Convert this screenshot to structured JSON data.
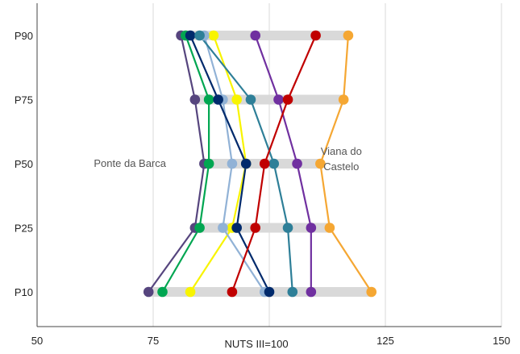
{
  "chart_data": {
    "type": "dot-range",
    "xlabel": "NUTS III=100",
    "xlim": [
      50,
      150
    ],
    "x_ticks": [
      50,
      75,
      125,
      150
    ],
    "x_tick_labels": [
      "50",
      "75",
      "125",
      "150"
    ],
    "gridlines_at": [
      75,
      100,
      125,
      150
    ],
    "categories": [
      "P90",
      "P75",
      "P50",
      "P25",
      "P10"
    ],
    "range_bars": [
      {
        "category": "P90",
        "min": 81,
        "max": 117
      },
      {
        "category": "P75",
        "min": 84,
        "max": 116
      },
      {
        "category": "P50",
        "min": 86,
        "max": 111
      },
      {
        "category": "P25",
        "min": 84,
        "max": 113
      },
      {
        "category": "P10",
        "min": 74,
        "max": 122
      }
    ],
    "annotations": [
      {
        "text": "Ponte da Barca",
        "x": 70,
        "category": "P50"
      },
      {
        "text": "Viana do",
        "x": 115.5,
        "category": "P50",
        "line": 0
      },
      {
        "text": "Castelo",
        "x": 115.5,
        "category": "P50",
        "line": 1
      }
    ],
    "series": [
      {
        "color": "#56457e",
        "values": [
          81,
          84,
          86,
          84,
          74
        ]
      },
      {
        "color": "#00a651",
        "values": [
          82,
          87,
          87,
          85,
          77
        ]
      },
      {
        "color": "#f8f400",
        "values": [
          88,
          93,
          95,
          92,
          83
        ]
      },
      {
        "color": "#91b2d6",
        "values": [
          86,
          90,
          92,
          90,
          99
        ]
      },
      {
        "color": "#002a6c",
        "values": [
          83,
          89,
          95,
          93,
          100
        ]
      },
      {
        "color": "#2e7f98",
        "values": [
          85,
          96,
          101,
          104,
          105
        ]
      },
      {
        "color": "#7030a0",
        "values": [
          97,
          102,
          106,
          109,
          109
        ]
      },
      {
        "color": "#c00000",
        "values": [
          110,
          104,
          99,
          97,
          92
        ]
      },
      {
        "color": "#f5a733",
        "values": [
          117,
          116,
          111,
          113,
          122
        ]
      }
    ],
    "grid": true
  }
}
